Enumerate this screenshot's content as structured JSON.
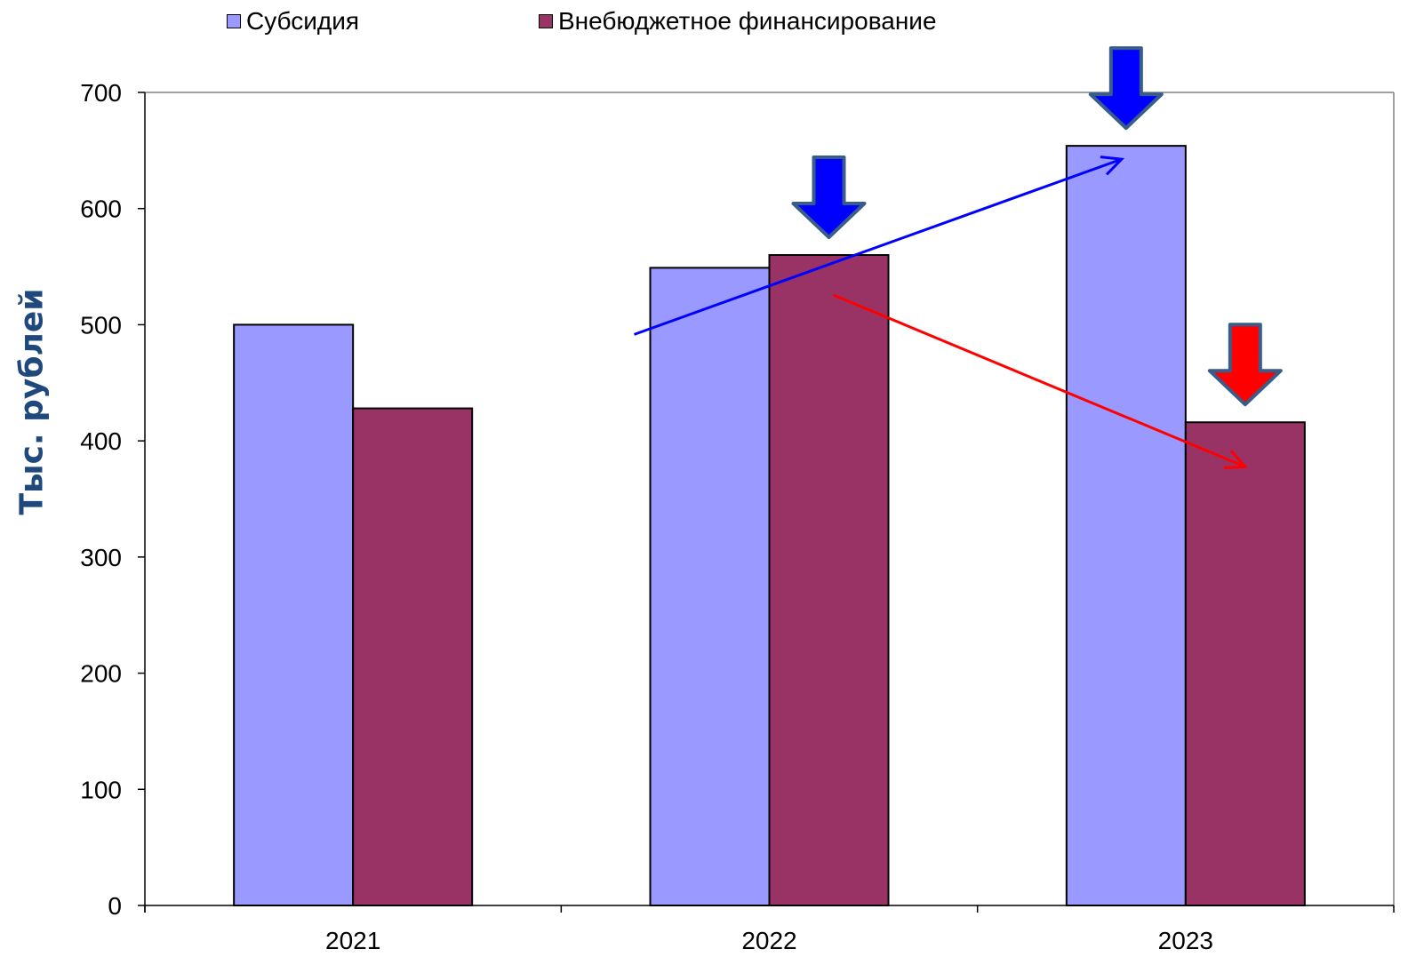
{
  "chart_data": {
    "type": "bar",
    "categories": [
      "2021",
      "2022",
      "2023"
    ],
    "series": [
      {
        "name": "Субсидия",
        "values": [
          500,
          549,
          654
        ],
        "color": "#9999ff"
      },
      {
        "name": "Внебюджетное финансирование",
        "values": [
          428,
          560,
          416
        ],
        "color": "#993366"
      }
    ],
    "title": "",
    "xlabel": "",
    "ylabel": "Тыс. рублей",
    "ylim": [
      0,
      700
    ],
    "yticks": [
      "0",
      "100",
      "200",
      "300",
      "400",
      "500",
      "600",
      "700"
    ],
    "grid": false,
    "legend_position": "top",
    "annotations": {
      "arrow_down_icons": [
        {
          "category": "2022",
          "series": "Внебюджетное финансирование",
          "color": "#0000ff"
        },
        {
          "category": "2023",
          "series": "Субсидия",
          "color": "#0000ff"
        },
        {
          "category": "2023",
          "series": "Внебюджетное финансирование",
          "color": "#ff0000"
        }
      ],
      "trend_arrows": [
        {
          "series": "Субсидия",
          "direction": "up",
          "color": "#0000ff"
        },
        {
          "series": "Внебюджетное финансирование",
          "direction": "down",
          "color": "#ff0000"
        }
      ]
    }
  }
}
